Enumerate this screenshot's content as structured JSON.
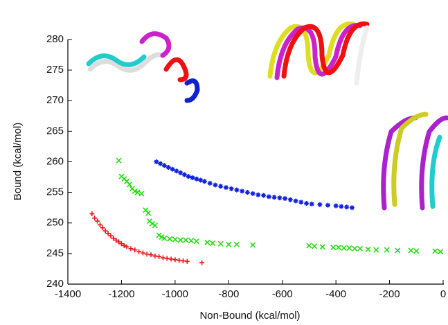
{
  "chart_data": {
    "type": "scatter",
    "xlabel": "Non-Bound (kcal/mol)",
    "ylabel": "Bound (kcal/mol)",
    "xlim": [
      -1400,
      0
    ],
    "xticks": [
      -1400,
      -1200,
      -1000,
      -800,
      -600,
      -400,
      -200,
      0
    ],
    "ylim": [
      240,
      280
    ],
    "yticks": [
      240,
      245,
      250,
      255,
      260,
      265,
      270,
      275,
      280
    ],
    "series": [
      {
        "color": "#ee1111",
        "marker": "+",
        "x": [
          -1310,
          -1300,
          -1290,
          -1280,
          -1270,
          -1260,
          -1250,
          -1240,
          -1230,
          -1220,
          -1210,
          -1200,
          -1190,
          -1180,
          -1165,
          -1150,
          -1135,
          -1120,
          -1105,
          -1090,
          -1075,
          -1060,
          -1045,
          -1030,
          -1015,
          -1000,
          -985,
          -970,
          -955,
          -900
        ],
        "values": [
          251.5,
          250.8,
          250.3,
          249.7,
          249.2,
          248.7,
          248.3,
          247.9,
          247.5,
          247.2,
          246.9,
          246.6,
          246.3,
          246.1,
          245.8,
          245.6,
          245.3,
          245.1,
          244.9,
          244.8,
          244.6,
          244.5,
          244.3,
          244.2,
          244.1,
          244.0,
          243.9,
          243.8,
          243.7,
          243.5
        ]
      },
      {
        "color": "#22dd11",
        "marker": "x",
        "x": [
          -1210,
          -1200,
          -1190,
          -1180,
          -1170,
          -1160,
          -1150,
          -1140,
          -1125,
          -1110,
          -1100,
          -1095,
          -1085,
          -1075,
          -1060,
          -1050,
          -1040,
          -1020,
          -1000,
          -980,
          -960,
          -940,
          -920,
          -880,
          -860,
          -830,
          -800,
          -770,
          -710,
          -500,
          -480,
          -450,
          -410,
          -390,
          -370,
          -350,
          -330,
          -310,
          -280,
          -250,
          -210,
          -170,
          -120,
          -100,
          -30,
          -10
        ],
        "values": [
          260.2,
          257.6,
          257.2,
          256.8,
          256.3,
          255.6,
          255.2,
          255.0,
          254.8,
          252.1,
          251.6,
          250.3,
          249.9,
          249.6,
          248.0,
          247.7,
          247.5,
          247.4,
          247.3,
          247.2,
          247.2,
          247.1,
          247.0,
          246.8,
          246.7,
          246.6,
          246.5,
          246.5,
          246.4,
          246.3,
          246.2,
          246.1,
          246.0,
          246.0,
          245.9,
          245.9,
          245.8,
          245.8,
          245.7,
          245.6,
          245.6,
          245.5,
          245.5,
          245.4,
          245.4,
          245.3
        ]
      },
      {
        "color": "#1122dd",
        "marker": "*",
        "x": [
          -1070,
          -1055,
          -1040,
          -1025,
          -1010,
          -995,
          -980,
          -965,
          -950,
          -935,
          -920,
          -905,
          -890,
          -870,
          -850,
          -830,
          -810,
          -790,
          -770,
          -750,
          -730,
          -710,
          -690,
          -670,
          -650,
          -630,
          -610,
          -590,
          -570,
          -550,
          -530,
          -510,
          -490,
          -460,
          -430,
          -400,
          -380,
          -360,
          -340
        ],
        "values": [
          260.0,
          259.7,
          259.4,
          259.1,
          258.8,
          258.5,
          258.2,
          257.9,
          257.6,
          257.4,
          257.2,
          257.0,
          256.8,
          256.5,
          256.2,
          256.0,
          255.8,
          255.6,
          255.4,
          255.2,
          255.0,
          254.8,
          254.6,
          254.5,
          254.3,
          254.2,
          254.1,
          254.0,
          253.8,
          253.6,
          253.4,
          253.2,
          253.1,
          253.0,
          252.9,
          252.8,
          252.7,
          252.6,
          252.5
        ]
      }
    ]
  }
}
